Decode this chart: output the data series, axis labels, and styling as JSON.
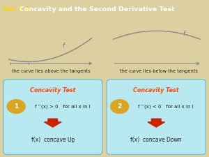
{
  "title_prefix": "Sec 4.3: ",
  "title_rest": "Concavity and the Second Derivative Test",
  "title_bg": "#7B1010",
  "title_gold": "#FFD700",
  "title_white": "#FFFFFF",
  "bg_color": "#DDD0A0",
  "panel_bg": "#B8E8F0",
  "panel_border": "#7BBFCF",
  "curve_left_label": "the curve lies above the tangents",
  "curve_right_label": "the curve lies below the tangents",
  "box1_title": "Concavity Test",
  "box1_cond": "f ’’(x) > 0   for all x in I",
  "box1_result": "f(x)  concave Up",
  "box2_title": "Concavity Test",
  "box2_cond": "f ’’(x) < 0   for all x in I",
  "box2_result": "f(x)  concave Down",
  "num_color": "#DAA520",
  "arrow_color": "#CC2200",
  "title_color": "#FF4500",
  "text_dark": "#222222"
}
